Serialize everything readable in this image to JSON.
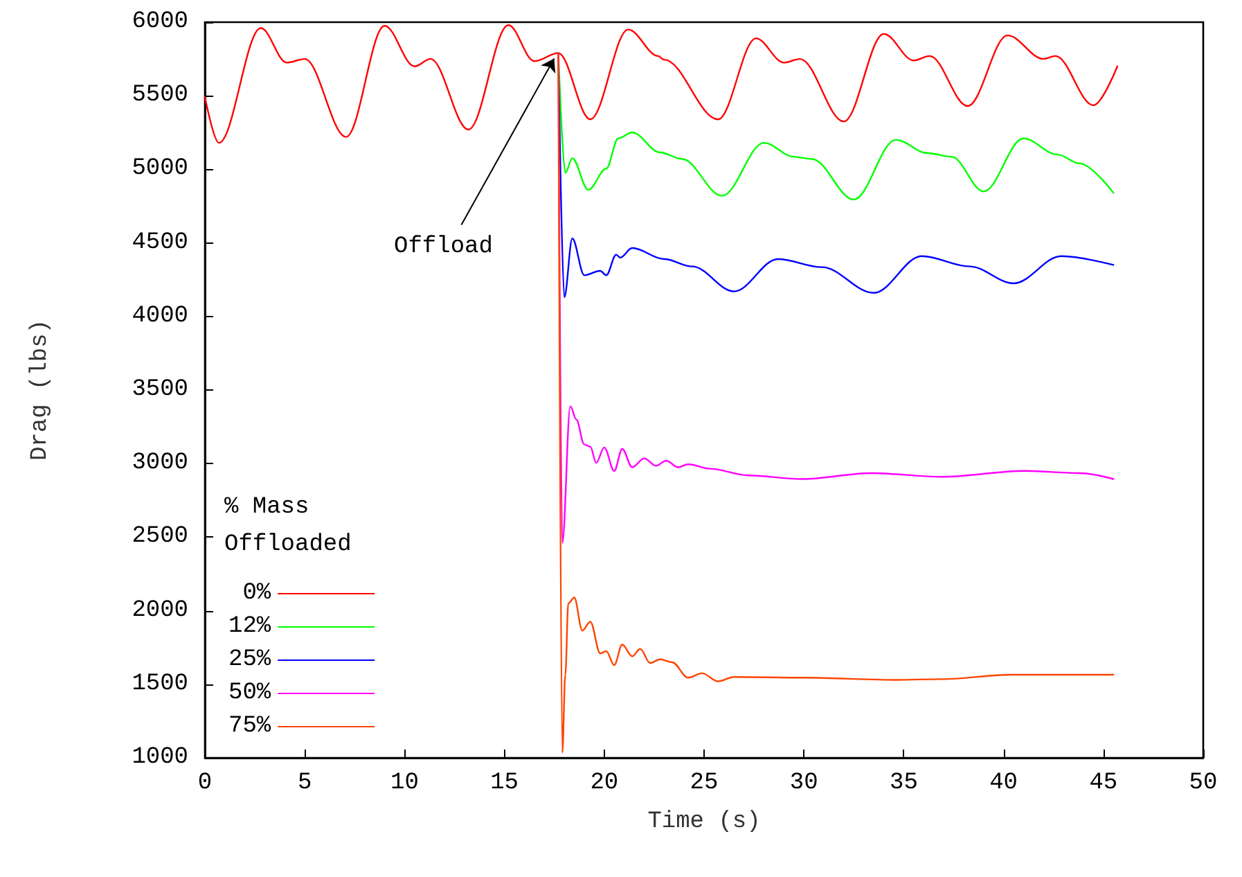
{
  "chart_data": {
    "type": "line",
    "xlabel": "Time (s)",
    "ylabel": "Drag (lbs)",
    "legend_title": "% Mass Offloaded",
    "legend": "bottom left",
    "grid": false,
    "marker": "none",
    "line_style": "solid",
    "xlim": [
      0,
      50
    ],
    "xticks": [
      0,
      5,
      10,
      15,
      20,
      25,
      30,
      35,
      40,
      45,
      50
    ],
    "ylim": [
      1000,
      6000
    ],
    "yticks": [
      1000,
      1500,
      2000,
      2500,
      3000,
      3500,
      4000,
      4500,
      5000,
      5500,
      6000
    ],
    "annotations": [
      {
        "text": "Offload",
        "x": 17.7,
        "y": 5790
      }
    ],
    "series": [
      {
        "name": "0%",
        "color": "#ff0000",
        "x": [
          0,
          0.7,
          2.8,
          4.1,
          5.0,
          7.07,
          9.0,
          10.5,
          11.3,
          13.2,
          15.2,
          16.5,
          17.7,
          19.3,
          21.2,
          22.7,
          23.0,
          25.7,
          27.6,
          29.0,
          29.8,
          32.0,
          34.0,
          35.5,
          36.3,
          38.2,
          40.2,
          42.0,
          42.6,
          44.5,
          45.7
        ],
        "values": [
          5490,
          5180,
          5960,
          5725,
          5750,
          5220,
          5975,
          5700,
          5750,
          5270,
          5980,
          5735,
          5790,
          5340,
          5950,
          5770,
          5745,
          5340,
          5890,
          5725,
          5750,
          5325,
          5920,
          5740,
          5770,
          5430,
          5910,
          5750,
          5770,
          5435,
          5700
        ]
      },
      {
        "name": "12%",
        "color": "#00ff00",
        "x": [
          17.7,
          18.05,
          18.4,
          19.2,
          20.1,
          20.7,
          21.4,
          22.8,
          23.9,
          25.9,
          28.0,
          29.5,
          30.4,
          32.5,
          34.6,
          36.2,
          37.4,
          39.0,
          41.0,
          42.7,
          43.8,
          45.5
        ],
        "values": [
          5790,
          4975,
          5075,
          4860,
          5005,
          5210,
          5250,
          5115,
          5070,
          4820,
          5180,
          5085,
          5070,
          4795,
          5200,
          5110,
          5085,
          4850,
          5210,
          5100,
          5040,
          4840
        ]
      },
      {
        "name": "25%",
        "color": "#0000ff",
        "x": [
          17.7,
          18.0,
          18.4,
          19.0,
          19.8,
          20.1,
          20.6,
          20.8,
          21.4,
          23.0,
          24.4,
          26.5,
          28.7,
          30.9,
          33.5,
          35.9,
          38.3,
          40.5,
          42.9,
          45.5
        ],
        "values": [
          5790,
          4130,
          4530,
          4280,
          4310,
          4280,
          4420,
          4400,
          4465,
          4390,
          4340,
          4170,
          4390,
          4335,
          4160,
          4410,
          4340,
          4225,
          4410,
          4350
        ]
      },
      {
        "name": "50%",
        "color": "#ff00ff",
        "x": [
          17.7,
          17.9,
          18.3,
          18.6,
          19.0,
          19.3,
          19.6,
          20.0,
          20.5,
          20.9,
          21.4,
          22.0,
          22.6,
          23.1,
          23.7,
          24.2,
          25.3,
          27.2,
          29.9,
          33.4,
          36.9,
          41.1,
          43.8,
          45.5
        ],
        "values": [
          5790,
          2460,
          3390,
          3300,
          3130,
          3115,
          3005,
          3110,
          2950,
          3100,
          2975,
          3035,
          2985,
          3020,
          2975,
          2995,
          2965,
          2920,
          2895,
          2935,
          2910,
          2950,
          2935,
          2895
        ]
      },
      {
        "name": "75%",
        "color": "#ff4500",
        "x": [
          17.7,
          17.9,
          18.05,
          18.2,
          18.5,
          18.9,
          19.3,
          19.8,
          20.1,
          20.5,
          20.9,
          21.4,
          21.8,
          22.3,
          22.8,
          23.4,
          24.2,
          24.9,
          25.7,
          26.5,
          30.0,
          34.6,
          36.9,
          40.4,
          45.5
        ],
        "values": [
          5790,
          1035,
          1565,
          2050,
          2090,
          1865,
          1925,
          1710,
          1725,
          1630,
          1770,
          1690,
          1740,
          1645,
          1670,
          1650,
          1545,
          1575,
          1520,
          1550,
          1545,
          1530,
          1535,
          1565,
          1565
        ]
      }
    ]
  }
}
